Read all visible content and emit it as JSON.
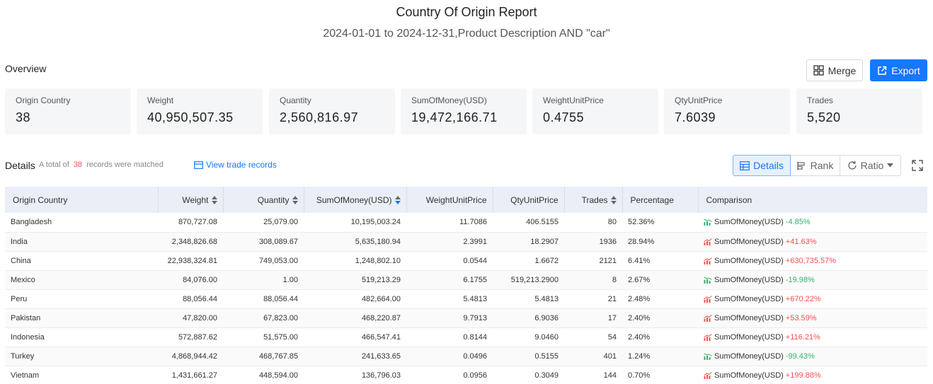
{
  "report": {
    "title": "Country Of Origin Report",
    "subtitle": "2024-01-01 to 2024-12-31,Product Description AND \"car\""
  },
  "overview": {
    "label": "Overview",
    "merge_label": "Merge",
    "export_label": "Export",
    "cards": [
      {
        "label": "Origin Country",
        "value": "38"
      },
      {
        "label": "Weight",
        "value": "40,950,507.35"
      },
      {
        "label": "Quantity",
        "value": "2,560,816.97"
      },
      {
        "label": "SumOfMoney(USD)",
        "value": "19,472,166.71"
      },
      {
        "label": "WeightUnitPrice",
        "value": "0.4755"
      },
      {
        "label": "QtyUnitPrice",
        "value": "7.6039"
      },
      {
        "label": "Trades",
        "value": "5,520"
      }
    ]
  },
  "details": {
    "label": "Details",
    "summary_prefix": "A total of",
    "count": "38",
    "summary_suffix": "records were matched",
    "view_link": "View trade records",
    "views": {
      "details": "Details",
      "rank": "Rank",
      "ratio": "Ratio"
    }
  },
  "colors": {
    "accent": "#1677ff",
    "increase": "#ff4d4f",
    "decrease": "#33b36b",
    "header_bg": "#e9eef7"
  },
  "table": {
    "columns": [
      "Origin Country",
      "Weight",
      "Quantity",
      "SumOfMoney(USD)",
      "WeightUnitPrice",
      "QtyUnitPrice",
      "Trades",
      "Percentage",
      "Comparison"
    ],
    "rows": [
      {
        "country": "Bangladesh",
        "weight": "870,727.08",
        "quantity": "25,079.00",
        "money": "10,195,003.24",
        "wup": "11.7086",
        "qup": "406.5155",
        "trades": "80",
        "pct": "52.36%",
        "cmp_label": "SumOfMoney(USD)",
        "cmp_value": "-4.85%",
        "trend": "down"
      },
      {
        "country": "India",
        "weight": "2,348,826.68",
        "quantity": "308,089.67",
        "money": "5,635,180.94",
        "wup": "2.3991",
        "qup": "18.2907",
        "trades": "1936",
        "pct": "28.94%",
        "cmp_label": "SumOfMoney(USD)",
        "cmp_value": "+41.63%",
        "trend": "up"
      },
      {
        "country": "China",
        "weight": "22,938,324.81",
        "quantity": "749,053.00",
        "money": "1,248,802.10",
        "wup": "0.0544",
        "qup": "1.6672",
        "trades": "2121",
        "pct": "6.41%",
        "cmp_label": "SumOfMoney(USD)",
        "cmp_value": "+630,735.57%",
        "trend": "up"
      },
      {
        "country": "Mexico",
        "weight": "84,076.00",
        "quantity": "1.00",
        "money": "519,213.29",
        "wup": "6.1755",
        "qup": "519,213.2900",
        "trades": "8",
        "pct": "2.67%",
        "cmp_label": "SumOfMoney(USD)",
        "cmp_value": "-19.98%",
        "trend": "down"
      },
      {
        "country": "Peru",
        "weight": "88,056.44",
        "quantity": "88,056.44",
        "money": "482,664.00",
        "wup": "5.4813",
        "qup": "5.4813",
        "trades": "21",
        "pct": "2.48%",
        "cmp_label": "SumOfMoney(USD)",
        "cmp_value": "+670.22%",
        "trend": "up"
      },
      {
        "country": "Pakistan",
        "weight": "47,820.00",
        "quantity": "67,823.00",
        "money": "468,220.87",
        "wup": "9.7913",
        "qup": "6.9036",
        "trades": "17",
        "pct": "2.40%",
        "cmp_label": "SumOfMoney(USD)",
        "cmp_value": "+53.59%",
        "trend": "up"
      },
      {
        "country": "Indonesia",
        "weight": "572,887.62",
        "quantity": "51,575.00",
        "money": "466,547.41",
        "wup": "0.8144",
        "qup": "9.0460",
        "trades": "54",
        "pct": "2.40%",
        "cmp_label": "SumOfMoney(USD)",
        "cmp_value": "+116.21%",
        "trend": "up"
      },
      {
        "country": "Turkey",
        "weight": "4,868,944.42",
        "quantity": "468,767.85",
        "money": "241,633.65",
        "wup": "0.0496",
        "qup": "0.5155",
        "trades": "401",
        "pct": "1.24%",
        "cmp_label": "SumOfMoney(USD)",
        "cmp_value": "-99.43%",
        "trend": "down"
      },
      {
        "country": "Vietnam",
        "weight": "1,431,661.27",
        "quantity": "448,594.00",
        "money": "136,796.03",
        "wup": "0.0956",
        "qup": "0.3049",
        "trades": "144",
        "pct": "0.70%",
        "cmp_label": "SumOfMoney(USD)",
        "cmp_value": "+199.88%",
        "trend": "up"
      }
    ]
  }
}
